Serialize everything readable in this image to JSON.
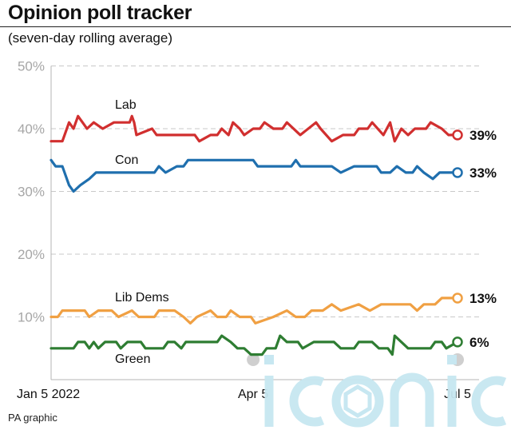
{
  "title": "Opinion poll tracker",
  "subtitle": "(seven-day rolling average)",
  "credit": "PA graphic",
  "watermark_text": "iconic",
  "chart_data": {
    "type": "line",
    "title": "Opinion poll tracker",
    "subtitle": "(seven-day rolling average)",
    "ylim": [
      0,
      50
    ],
    "yticks": [
      10,
      20,
      30,
      40,
      50
    ],
    "ytick_labels": [
      "10%",
      "20%",
      "30%",
      "40%",
      "50%"
    ],
    "xlim": [
      "2022-01-05",
      "2022-07-05"
    ],
    "xticks": [
      "2022-01-05",
      "2022-04-05",
      "2022-07-05"
    ],
    "xtick_labels": [
      "Jan 5 2022",
      "Apr 5",
      "Jul 5"
    ],
    "grid": "dashed horizontal",
    "series": [
      {
        "name": "Lab",
        "color": "#d12f2f",
        "end_label": "39%",
        "points": [
          [
            "2022-01-05",
            38
          ],
          [
            "2022-01-10",
            38
          ],
          [
            "2022-01-11",
            39
          ],
          [
            "2022-01-13",
            41
          ],
          [
            "2022-01-15",
            40
          ],
          [
            "2022-01-17",
            42
          ],
          [
            "2022-01-19",
            41
          ],
          [
            "2022-01-21",
            40
          ],
          [
            "2022-01-24",
            41
          ],
          [
            "2022-01-28",
            40
          ],
          [
            "2022-02-02",
            41
          ],
          [
            "2022-02-09",
            41
          ],
          [
            "2022-02-10",
            42
          ],
          [
            "2022-02-11",
            41
          ],
          [
            "2022-02-12",
            39
          ],
          [
            "2022-02-19",
            40
          ],
          [
            "2022-02-21",
            39
          ],
          [
            "2022-03-10",
            39
          ],
          [
            "2022-03-12",
            38
          ],
          [
            "2022-03-17",
            39
          ],
          [
            "2022-03-20",
            39
          ],
          [
            "2022-03-22",
            40
          ],
          [
            "2022-03-25",
            39
          ],
          [
            "2022-03-27",
            41
          ],
          [
            "2022-03-30",
            40
          ],
          [
            "2022-04-01",
            39
          ],
          [
            "2022-04-05",
            40
          ],
          [
            "2022-04-08",
            40
          ],
          [
            "2022-04-10",
            41
          ],
          [
            "2022-04-14",
            40
          ],
          [
            "2022-04-18",
            40
          ],
          [
            "2022-04-20",
            41
          ],
          [
            "2022-04-26",
            39
          ],
          [
            "2022-05-03",
            41
          ],
          [
            "2022-05-05",
            40
          ],
          [
            "2022-05-10",
            38
          ],
          [
            "2022-05-15",
            39
          ],
          [
            "2022-05-20",
            39
          ],
          [
            "2022-05-22",
            40
          ],
          [
            "2022-05-26",
            40
          ],
          [
            "2022-05-28",
            41
          ],
          [
            "2022-06-02",
            39
          ],
          [
            "2022-06-05",
            41
          ],
          [
            "2022-06-07",
            38
          ],
          [
            "2022-06-10",
            40
          ],
          [
            "2022-06-13",
            39
          ],
          [
            "2022-06-16",
            40
          ],
          [
            "2022-06-21",
            40
          ],
          [
            "2022-06-23",
            41
          ],
          [
            "2022-06-28",
            40
          ],
          [
            "2022-07-01",
            39
          ],
          [
            "2022-07-05",
            39
          ]
        ]
      },
      {
        "name": "Con",
        "color": "#1f6fae",
        "end_label": "33%",
        "points": [
          [
            "2022-01-05",
            35
          ],
          [
            "2022-01-07",
            34
          ],
          [
            "2022-01-10",
            34
          ],
          [
            "2022-01-13",
            31
          ],
          [
            "2022-01-15",
            30
          ],
          [
            "2022-01-18",
            31
          ],
          [
            "2022-01-22",
            32
          ],
          [
            "2022-01-25",
            33
          ],
          [
            "2022-02-20",
            33
          ],
          [
            "2022-02-22",
            34
          ],
          [
            "2022-02-25",
            33
          ],
          [
            "2022-03-02",
            34
          ],
          [
            "2022-03-05",
            34
          ],
          [
            "2022-03-07",
            35
          ],
          [
            "2022-04-05",
            35
          ],
          [
            "2022-04-07",
            34
          ],
          [
            "2022-04-15",
            34
          ],
          [
            "2022-04-22",
            34
          ],
          [
            "2022-04-24",
            35
          ],
          [
            "2022-04-26",
            34
          ],
          [
            "2022-05-10",
            34
          ],
          [
            "2022-05-14",
            33
          ],
          [
            "2022-05-20",
            34
          ],
          [
            "2022-05-30",
            34
          ],
          [
            "2022-06-01",
            33
          ],
          [
            "2022-06-05",
            33
          ],
          [
            "2022-06-08",
            34
          ],
          [
            "2022-06-12",
            33
          ],
          [
            "2022-06-15",
            33
          ],
          [
            "2022-06-17",
            34
          ],
          [
            "2022-06-20",
            33
          ],
          [
            "2022-06-24",
            32
          ],
          [
            "2022-06-27",
            33
          ],
          [
            "2022-07-05",
            33
          ]
        ]
      },
      {
        "name": "Lib Dems",
        "color": "#f0a043",
        "end_label": "13%",
        "points": [
          [
            "2022-01-05",
            10
          ],
          [
            "2022-01-08",
            10
          ],
          [
            "2022-01-10",
            11
          ],
          [
            "2022-01-20",
            11
          ],
          [
            "2022-01-22",
            10
          ],
          [
            "2022-01-26",
            11
          ],
          [
            "2022-02-01",
            11
          ],
          [
            "2022-02-04",
            10
          ],
          [
            "2022-02-10",
            11
          ],
          [
            "2022-02-13",
            10
          ],
          [
            "2022-02-20",
            10
          ],
          [
            "2022-02-22",
            11
          ],
          [
            "2022-03-01",
            11
          ],
          [
            "2022-03-05",
            10
          ],
          [
            "2022-03-08",
            9
          ],
          [
            "2022-03-11",
            10
          ],
          [
            "2022-03-17",
            11
          ],
          [
            "2022-03-20",
            10
          ],
          [
            "2022-03-24",
            10
          ],
          [
            "2022-03-26",
            11
          ],
          [
            "2022-03-30",
            10
          ],
          [
            "2022-04-04",
            10
          ],
          [
            "2022-04-06",
            9
          ],
          [
            "2022-04-14",
            10
          ],
          [
            "2022-04-20",
            11
          ],
          [
            "2022-04-24",
            10
          ],
          [
            "2022-04-28",
            10
          ],
          [
            "2022-05-01",
            11
          ],
          [
            "2022-05-06",
            11
          ],
          [
            "2022-05-10",
            12
          ],
          [
            "2022-05-14",
            11
          ],
          [
            "2022-05-22",
            12
          ],
          [
            "2022-05-27",
            11
          ],
          [
            "2022-06-01",
            12
          ],
          [
            "2022-06-14",
            12
          ],
          [
            "2022-06-17",
            11
          ],
          [
            "2022-06-20",
            12
          ],
          [
            "2022-06-25",
            12
          ],
          [
            "2022-06-28",
            13
          ],
          [
            "2022-07-05",
            13
          ]
        ]
      },
      {
        "name": "Green",
        "color": "#2e7d32",
        "end_label": "6%",
        "points": [
          [
            "2022-01-05",
            5
          ],
          [
            "2022-01-15",
            5
          ],
          [
            "2022-01-17",
            6
          ],
          [
            "2022-01-20",
            6
          ],
          [
            "2022-01-22",
            5
          ],
          [
            "2022-01-24",
            6
          ],
          [
            "2022-01-26",
            5
          ],
          [
            "2022-01-29",
            6
          ],
          [
            "2022-02-03",
            6
          ],
          [
            "2022-02-05",
            5
          ],
          [
            "2022-02-08",
            6
          ],
          [
            "2022-02-14",
            6
          ],
          [
            "2022-02-16",
            5
          ],
          [
            "2022-02-24",
            5
          ],
          [
            "2022-02-26",
            6
          ],
          [
            "2022-03-01",
            6
          ],
          [
            "2022-03-04",
            5
          ],
          [
            "2022-03-06",
            6
          ],
          [
            "2022-03-20",
            6
          ],
          [
            "2022-03-22",
            7
          ],
          [
            "2022-03-26",
            6
          ],
          [
            "2022-03-29",
            5
          ],
          [
            "2022-04-01",
            5
          ],
          [
            "2022-04-04",
            4
          ],
          [
            "2022-04-09",
            4
          ],
          [
            "2022-04-11",
            5
          ],
          [
            "2022-04-15",
            5
          ],
          [
            "2022-04-17",
            7
          ],
          [
            "2022-04-20",
            6
          ],
          [
            "2022-04-25",
            6
          ],
          [
            "2022-04-27",
            5
          ],
          [
            "2022-05-02",
            6
          ],
          [
            "2022-05-11",
            6
          ],
          [
            "2022-05-14",
            5
          ],
          [
            "2022-05-20",
            5
          ],
          [
            "2022-05-22",
            6
          ],
          [
            "2022-05-28",
            6
          ],
          [
            "2022-05-31",
            5
          ],
          [
            "2022-06-04",
            5
          ],
          [
            "2022-06-06",
            4
          ],
          [
            "2022-06-07",
            7
          ],
          [
            "2022-06-10",
            6
          ],
          [
            "2022-06-13",
            5
          ],
          [
            "2022-06-23",
            5
          ],
          [
            "2022-06-25",
            6
          ],
          [
            "2022-06-28",
            6
          ],
          [
            "2022-06-30",
            5
          ],
          [
            "2022-07-05",
            6
          ]
        ]
      }
    ],
    "series_labels": [
      "Lab",
      "Con",
      "Lib Dems",
      "Green"
    ]
  }
}
